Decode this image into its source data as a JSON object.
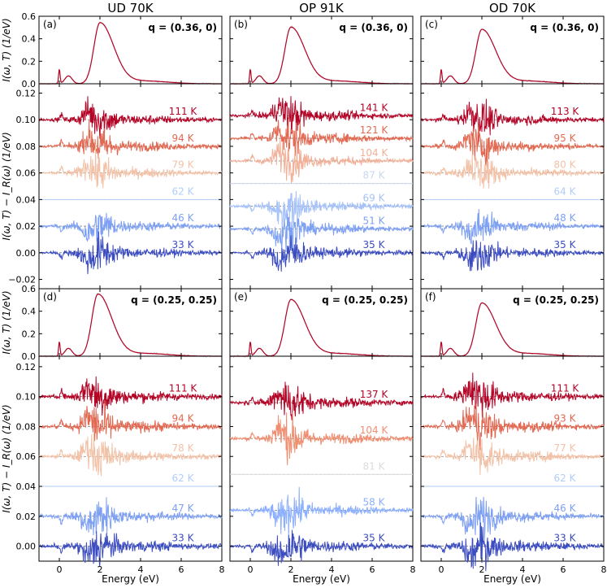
{
  "chart_data": {
    "type": "line",
    "columns": [
      {
        "title": "UD 70K"
      },
      {
        "title": "OP 91K"
      },
      {
        "title": "OD 70K"
      }
    ],
    "xlabel": "Energy (eV)",
    "xlim": [
      -1,
      8
    ],
    "xticks": [
      "0",
      "2",
      "4",
      "6",
      "8"
    ],
    "top_ylabel": "I(ω, T) (1/eV)",
    "diff_ylabel": "I(ω, T) − I_R(ω) (1/eV)",
    "rows": [
      {
        "q_label": "q = (0.36, 0)",
        "top": {
          "ylim": [
            0,
            0.6
          ],
          "yticks": [
            "0.0",
            "0.2",
            "0.4",
            "0.6"
          ],
          "panels": [
            {
              "letter": "(a)",
              "peak_energy": 2.0,
              "peak_value": 0.54
            },
            {
              "letter": "(b)",
              "peak_energy": 2.0,
              "peak_value": 0.5
            },
            {
              "letter": "(c)",
              "peak_energy": 2.0,
              "peak_value": 0.48
            }
          ]
        },
        "diff": {
          "ylim": [
            -0.027,
            0.127
          ],
          "yticks": [
            "−0.02",
            "0.00",
            "0.02",
            "0.04",
            "0.06",
            "0.08",
            "0.10",
            "0.12"
          ],
          "panels": [
            {
              "series": [
                {
                  "temp": "111 K",
                  "offset": 0.1,
                  "color": "#b40426"
                },
                {
                  "temp": "94 K",
                  "offset": 0.08,
                  "color": "#e26952"
                },
                {
                  "temp": "79 K",
                  "offset": 0.06,
                  "color": "#f2c2a8"
                },
                {
                  "temp": "62 K",
                  "offset": 0.04,
                  "color": "#b2cdf9"
                },
                {
                  "temp": "46 K",
                  "offset": 0.02,
                  "color": "#7ea0f3"
                },
                {
                  "temp": "33 K",
                  "offset": 0.0,
                  "color": "#3b4cc0"
                }
              ]
            },
            {
              "series": [
                {
                  "temp": "141 K",
                  "offset": 0.103,
                  "color": "#b40426"
                },
                {
                  "temp": "121 K",
                  "offset": 0.086,
                  "color": "#e26952"
                },
                {
                  "temp": "104 K",
                  "offset": 0.069,
                  "color": "#f2b098"
                },
                {
                  "temp": "87 K",
                  "offset": 0.052,
                  "color": "#c9d7f0"
                },
                {
                  "temp": "69 K",
                  "offset": 0.035,
                  "color": "#a6c2f8"
                },
                {
                  "temp": "51 K",
                  "offset": 0.018,
                  "color": "#7ea0f3"
                },
                {
                  "temp": "35 K",
                  "offset": 0.0,
                  "color": "#3b4cc0"
                }
              ]
            },
            {
              "series": [
                {
                  "temp": "113 K",
                  "offset": 0.1,
                  "color": "#b40426"
                },
                {
                  "temp": "95 K",
                  "offset": 0.08,
                  "color": "#e26952"
                },
                {
                  "temp": "80 K",
                  "offset": 0.06,
                  "color": "#f2c2a8"
                },
                {
                  "temp": "64 K",
                  "offset": 0.04,
                  "color": "#b2cdf9"
                },
                {
                  "temp": "48 K",
                  "offset": 0.02,
                  "color": "#7ea0f3"
                },
                {
                  "temp": "35 K",
                  "offset": 0.0,
                  "color": "#3b4cc0"
                }
              ]
            }
          ]
        }
      },
      {
        "q_label": "q = (0.25, 0.25)",
        "top": {
          "ylim": [
            0,
            0.6
          ],
          "yticks": [
            "0.0",
            "0.2",
            "0.4",
            "0.6"
          ],
          "panels": [
            {
              "letter": "(d)",
              "peak_energy": 1.9,
              "peak_value": 0.55
            },
            {
              "letter": "(e)",
              "peak_energy": 2.0,
              "peak_value": 0.5
            },
            {
              "letter": "(f)",
              "peak_energy": 2.0,
              "peak_value": 0.47
            }
          ]
        },
        "diff": {
          "ylim": [
            -0.01,
            0.127
          ],
          "yticks": [
            "0.00",
            "0.02",
            "0.04",
            "0.06",
            "0.08",
            "0.10",
            "0.12"
          ],
          "panels": [
            {
              "series": [
                {
                  "temp": "111 K",
                  "offset": 0.1,
                  "color": "#b40426"
                },
                {
                  "temp": "94 K",
                  "offset": 0.08,
                  "color": "#e26952"
                },
                {
                  "temp": "78 K",
                  "offset": 0.06,
                  "color": "#f2c2a8"
                },
                {
                  "temp": "62 K",
                  "offset": 0.04,
                  "color": "#b2cdf9"
                },
                {
                  "temp": "47 K",
                  "offset": 0.02,
                  "color": "#7ea0f3"
                },
                {
                  "temp": "33 K",
                  "offset": 0.0,
                  "color": "#3b4cc0"
                }
              ]
            },
            {
              "series": [
                {
                  "temp": "137 K",
                  "offset": 0.096,
                  "color": "#b40426"
                },
                {
                  "temp": "104 K",
                  "offset": 0.072,
                  "color": "#ef8f72"
                },
                {
                  "temp": "81 K",
                  "offset": 0.048,
                  "color": "#dcdcdc"
                },
                {
                  "temp": "58 K",
                  "offset": 0.024,
                  "color": "#8caffe"
                },
                {
                  "temp": "35 K",
                  "offset": 0.0,
                  "color": "#3b4cc0"
                }
              ]
            },
            {
              "series": [
                {
                  "temp": "111 K",
                  "offset": 0.1,
                  "color": "#b40426"
                },
                {
                  "temp": "93 K",
                  "offset": 0.08,
                  "color": "#e26952"
                },
                {
                  "temp": "77 K",
                  "offset": 0.06,
                  "color": "#f2c2a8"
                },
                {
                  "temp": "62 K",
                  "offset": 0.04,
                  "color": "#b2cdf9"
                },
                {
                  "temp": "46 K",
                  "offset": 0.02,
                  "color": "#7ea0f3"
                },
                {
                  "temp": "33 K",
                  "offset": 0.0,
                  "color": "#3b4cc0"
                }
              ]
            }
          ]
        }
      }
    ]
  }
}
